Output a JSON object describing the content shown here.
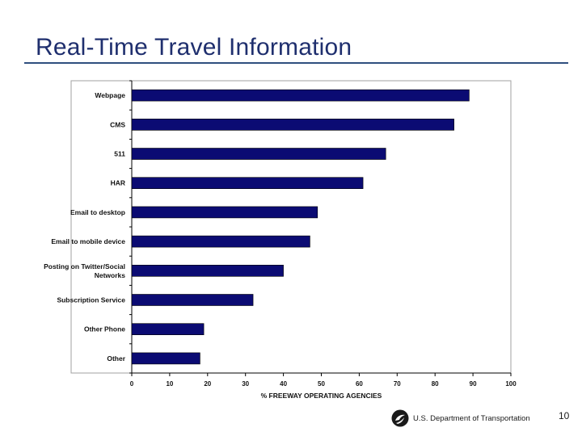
{
  "slide": {
    "title": "Real-Time Travel Information",
    "footer_text": "U.S. Department of Transportation",
    "page_number": "10"
  },
  "chart_data": {
    "type": "bar",
    "orientation": "horizontal",
    "categories": [
      "Webpage",
      "CMS",
      "511",
      "HAR",
      "Email to desktop",
      "Email to mobile device",
      "Posting on Twitter/Social Networks",
      "Subscription Service",
      "Other Phone",
      "Other"
    ],
    "category_lines": [
      [
        "Webpage"
      ],
      [
        "CMS"
      ],
      [
        "511"
      ],
      [
        "HAR"
      ],
      [
        "Email to desktop"
      ],
      [
        "Email to mobile device"
      ],
      [
        "Posting on Twitter/Social",
        "Networks"
      ],
      [
        "Subscription Service"
      ],
      [
        "Other Phone"
      ],
      [
        "Other"
      ]
    ],
    "values": [
      89,
      85,
      67,
      61,
      49,
      47,
      40,
      32,
      19,
      18
    ],
    "xlabel": "% FREEWAY OPERATING AGENCIES",
    "ylabel": "",
    "xlim": [
      0,
      100
    ],
    "xticks": [
      0,
      10,
      20,
      30,
      40,
      50,
      60,
      70,
      80,
      90,
      100
    ],
    "bar_color": "#0b0b73",
    "grid": false
  }
}
